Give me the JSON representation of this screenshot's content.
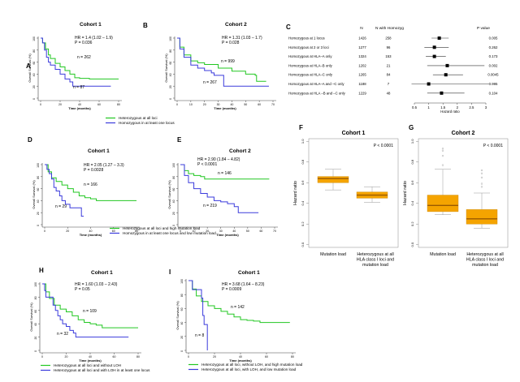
{
  "colors": {
    "green": "#22c722",
    "blue": "#3b3bdc",
    "box_fill": "#f5a400",
    "box_median": "#9a5a00",
    "axis": "#444444",
    "ci_line": "#333333"
  },
  "chart_data": [
    {
      "id": "A",
      "type": "line",
      "panel_label": "A",
      "title": "Cohort 1",
      "xlabel": "Time (months)",
      "ylabel": "Overall Survival (%)",
      "xlim": [
        0,
        80
      ],
      "ylim": [
        0,
        100
      ],
      "xticks": [
        0,
        20,
        40,
        60,
        80
      ],
      "yticks": [
        0,
        20,
        40,
        60,
        80,
        100
      ],
      "annotation": [
        "HR = 1.4 (1.02 – 1.9)",
        "P = 0.036"
      ],
      "series": [
        {
          "name": "Heterozygous at all loci",
          "color": "green",
          "n_label": "n = 262",
          "x": [
            0,
            2,
            5,
            8,
            10,
            15,
            20,
            25,
            30,
            35,
            40,
            50,
            60,
            70,
            80
          ],
          "y": [
            100,
            92,
            82,
            72,
            66,
            58,
            52,
            46,
            40,
            34,
            33,
            32,
            32,
            32,
            32
          ]
        },
        {
          "name": "Homozygous in at least one locus",
          "color": "blue",
          "n_label": "n = 87",
          "x": [
            0,
            2,
            4,
            6,
            8,
            10,
            15,
            20,
            25,
            30,
            33,
            40,
            50,
            60,
            72
          ],
          "y": [
            100,
            92,
            80,
            68,
            60,
            55,
            48,
            40,
            32,
            27,
            20,
            20,
            20,
            20,
            20
          ]
        }
      ],
      "legend": [
        "Heterozygous at all loci",
        "Homozygous in at least one locus"
      ]
    },
    {
      "id": "B",
      "type": "line",
      "panel_label": "B",
      "title": "Cohort 2",
      "xlabel": "Time (months)",
      "ylabel": "Overall Survival (%)",
      "xlim": [
        0,
        70
      ],
      "ylim": [
        0,
        100
      ],
      "xticks": [
        0,
        10,
        20,
        30,
        40,
        50,
        60,
        70
      ],
      "yticks": [
        0,
        20,
        40,
        60,
        80,
        100
      ],
      "annotation": [
        "HR = 1.31 (1.03 – 1.7)",
        "P = 0.028"
      ],
      "series": [
        {
          "name": "Heterozygous at all loci",
          "color": "green",
          "n_label": "n = 999",
          "x": [
            0,
            2,
            5,
            10,
            15,
            20,
            30,
            40,
            50,
            57,
            58,
            65
          ],
          "y": [
            100,
            85,
            72,
            62,
            59,
            56,
            50,
            45,
            40,
            38,
            28,
            28
          ]
        },
        {
          "name": "Homozygous in at least one locus",
          "color": "blue",
          "n_label": "n = 267",
          "x": [
            0,
            2,
            5,
            10,
            15,
            20,
            25,
            27,
            33,
            34,
            67
          ],
          "y": [
            100,
            82,
            68,
            55,
            50,
            46,
            42,
            38,
            38,
            20,
            20
          ]
        }
      ]
    },
    {
      "id": "C",
      "type": "scatter",
      "panel_label": "C",
      "subtype": "forest",
      "columns": [
        "N",
        "N with Homozyg",
        "P value"
      ],
      "xlabel": "Hazard ratio",
      "xlim": [
        0.5,
        3
      ],
      "xticks": [
        0.5,
        1,
        1.5,
        2,
        2.5,
        3
      ],
      "rows": [
        {
          "label": "Homozygous at 1 locus",
          "n": "1426",
          "n_homo": "258",
          "hr": 1.37,
          "lo": 1.1,
          "hi": 1.7,
          "p": "0.005"
        },
        {
          "label": "Homozygous at 2 or 3 loci",
          "n": "1277",
          "n_homo": "96",
          "hr": 1.2,
          "lo": 0.85,
          "hi": 1.7,
          "p": "0.262"
        },
        {
          "label": "Homozygous at HLA–A only",
          "n": "1324",
          "n_homo": "153",
          "hr": 1.2,
          "lo": 0.9,
          "hi": 1.6,
          "p": "0.173"
        },
        {
          "label": "Homozygous at HLA–B only",
          "n": "1202",
          "n_homo": "21",
          "hr": 1.65,
          "lo": 0.95,
          "hi": 2.95,
          "p": "0.002"
        },
        {
          "label": "Homozygous at HLA–C only",
          "n": "1265",
          "n_homo": "84",
          "hr": 1.6,
          "lo": 1.15,
          "hi": 2.2,
          "p": "0.0045"
        },
        {
          "label": "Homozygous at HLA–A and –C only",
          "n": "1188",
          "n_homo": "7",
          "hr": 1.0,
          "lo": 0.4,
          "hi": 3.1,
          "p": "0.995"
        },
        {
          "label": "Homozygous at HLA –B and –C only",
          "n": "1229",
          "n_homo": "48",
          "hr": 1.45,
          "lo": 0.95,
          "hi": 2.25,
          "p": "0.104"
        }
      ]
    },
    {
      "id": "D",
      "type": "line",
      "panel_label": "D",
      "title": "Cohort 1",
      "xlabel": "Time (months)",
      "ylabel": "Overall Survival (%)",
      "xlim": [
        0,
        80
      ],
      "ylim": [
        0,
        100
      ],
      "xticks": [
        0,
        20,
        40,
        60,
        80
      ],
      "yticks": [
        0,
        20,
        40,
        60,
        80,
        100
      ],
      "annotation": [
        "HR = 2.05 (1.27 – 3.3)",
        "P = 0.0028"
      ],
      "series": [
        {
          "name": "Heterozygous at all loci and high mutation load",
          "color": "green",
          "n_label": "n = 166",
          "x": [
            0,
            3,
            6,
            10,
            15,
            20,
            25,
            30,
            35,
            40,
            45,
            50,
            60,
            70,
            80
          ],
          "y": [
            100,
            88,
            78,
            72,
            66,
            60,
            54,
            48,
            45,
            43,
            40,
            40,
            40,
            40,
            40
          ]
        },
        {
          "name": "Homozygous in at least one locus and low mutation load",
          "color": "blue",
          "n_label": "n = 29",
          "x": [
            0,
            2,
            4,
            6,
            8,
            10,
            13,
            15,
            18,
            22,
            30,
            32,
            34
          ],
          "y": [
            100,
            92,
            85,
            76,
            62,
            56,
            48,
            40,
            34,
            28,
            28,
            14,
            14
          ]
        }
      ],
      "legend": [
        "Heterozygous at all loci and high mutation load",
        "Homozygous in at least one locus and low mutation load"
      ]
    },
    {
      "id": "E",
      "type": "line",
      "panel_label": "E",
      "title": "Cohort 2",
      "xlabel": "Time (months)",
      "ylabel": "Overall Survival (%)",
      "xlim": [
        0,
        70
      ],
      "ylim": [
        0,
        100
      ],
      "xticks": [
        0,
        10,
        20,
        30,
        40,
        50,
        60,
        70
      ],
      "yticks": [
        0,
        20,
        40,
        60,
        80,
        100
      ],
      "annotation": [
        "HR = 2.90 (1.84 – 4.82)",
        "P < 0.0001"
      ],
      "series": [
        {
          "name": "Heterozygous at all loci and high mutation load",
          "color": "green",
          "n_label": "n = 146",
          "x": [
            0,
            3,
            6,
            10,
            15,
            18,
            20,
            40,
            60,
            66
          ],
          "y": [
            100,
            90,
            85,
            82,
            80,
            76,
            76,
            76,
            76,
            76
          ]
        },
        {
          "name": "Homozygous in at least one locus and low mutation load",
          "color": "blue",
          "n_label": "n = 219",
          "x": [
            0,
            3,
            6,
            10,
            15,
            20,
            25,
            30,
            35,
            40,
            42,
            43,
            58
          ],
          "y": [
            100,
            82,
            70,
            60,
            52,
            46,
            40,
            38,
            35,
            30,
            30,
            20,
            20
          ]
        }
      ]
    },
    {
      "id": "F",
      "type": "bar",
      "subtype": "boxplot",
      "panel_label": "F",
      "title": "Cohort 1",
      "ylabel": "Hazard ratio",
      "ylim": [
        0,
        1
      ],
      "yticks": [
        0.0,
        0.2,
        0.4,
        0.6,
        0.8,
        1.0
      ],
      "annotation": "P < 0.0001",
      "categories": [
        "Mutation load",
        "Heterozygous at all HLA class I loci and mutation load"
      ],
      "boxes": [
        {
          "min": 0.53,
          "q1": 0.6,
          "median": 0.64,
          "q3": 0.66,
          "max": 0.73,
          "outliers": []
        },
        {
          "min": 0.41,
          "q1": 0.45,
          "median": 0.48,
          "q3": 0.51,
          "max": 0.56,
          "outliers": []
        }
      ]
    },
    {
      "id": "G",
      "type": "bar",
      "subtype": "boxplot",
      "panel_label": "G",
      "title": "Cohort 2",
      "ylabel": "Hazard ratio",
      "ylim": [
        0,
        1
      ],
      "yticks": [
        0.0,
        0.2,
        0.4,
        0.6,
        0.8,
        1.0
      ],
      "annotation": "P < 0.0001",
      "categories": [
        "Mutation load",
        "Heterozygous at all HLA class I loci and mutation load"
      ],
      "boxes": [
        {
          "min": 0.29,
          "q1": 0.32,
          "median": 0.38,
          "q3": 0.48,
          "max": 0.73,
          "outliers": [
            0.77,
            0.86,
            0.91,
            0.93
          ]
        },
        {
          "min": 0.16,
          "q1": 0.2,
          "median": 0.25,
          "q3": 0.34,
          "max": 0.5,
          "outliers": [
            0.56,
            0.59,
            0.65,
            0.69,
            0.72
          ]
        }
      ]
    },
    {
      "id": "H",
      "type": "line",
      "panel_label": "H",
      "title": "Cohort 1",
      "xlabel": "Time (months)",
      "ylabel": "Overall Survival (%)",
      "xlim": [
        0,
        80
      ],
      "ylim": [
        0,
        100
      ],
      "xticks": [
        0,
        20,
        40,
        60,
        80
      ],
      "yticks": [
        0,
        20,
        40,
        60,
        80,
        100
      ],
      "annotation": [
        "HR = 1.60 (1.03 – 2.43)",
        "P = 0.05"
      ],
      "series": [
        {
          "name": "Heterozygous at all loci and without LOH",
          "color": "green",
          "n_label": "n = 109",
          "x": [
            0,
            3,
            6,
            10,
            15,
            20,
            25,
            30,
            35,
            40,
            45,
            50,
            60,
            70,
            80
          ],
          "y": [
            100,
            88,
            78,
            68,
            62,
            58,
            52,
            46,
            42,
            40,
            38,
            34,
            34,
            34,
            34
          ]
        },
        {
          "name": "Heterozygous at all loci and with LOH in at least one locus",
          "color": "blue",
          "n_label": "n = 32",
          "x": [
            0,
            2,
            3,
            7,
            9,
            11,
            13,
            15,
            17,
            20,
            23,
            26,
            28,
            72
          ],
          "y": [
            100,
            90,
            80,
            80,
            68,
            60,
            52,
            46,
            40,
            36,
            30,
            26,
            20,
            20
          ]
        }
      ],
      "legend": [
        "Heterozygous at all loci and without LOH",
        "Heterozygous at all loci and with LOH in at least one locus"
      ]
    },
    {
      "id": "I",
      "type": "line",
      "panel_label": "I",
      "title": "Cohort 1",
      "xlabel": "Time (months)",
      "ylabel": "Overall Survival (%)",
      "xlim": [
        0,
        80
      ],
      "ylim": [
        0,
        100
      ],
      "xticks": [
        0,
        20,
        40,
        60,
        80
      ],
      "yticks": [
        0,
        20,
        40,
        60,
        80,
        100
      ],
      "annotation": [
        "HR = 3.68 (1.64 – 8.23)",
        "P = 0.0009"
      ],
      "series": [
        {
          "name": "Heterozygous at all loci, without LOH, and high mutation load",
          "color": "green",
          "n_label": "n = 142",
          "x": [
            0,
            3,
            6,
            10,
            15,
            20,
            25,
            30,
            35,
            40,
            45,
            50,
            55,
            60,
            70,
            78
          ],
          "y": [
            100,
            88,
            78,
            70,
            64,
            60,
            56,
            52,
            48,
            44,
            43,
            42,
            40,
            40,
            40,
            40
          ]
        },
        {
          "name": "Heterozygous at all loci, with LOH, and low mutation load",
          "color": "blue",
          "n_label": "n = 8",
          "x": [
            0,
            3,
            8,
            10,
            11,
            12,
            13,
            14,
            14.5
          ],
          "y": [
            100,
            87,
            87,
            75,
            50,
            37,
            37,
            37,
            0
          ]
        }
      ],
      "legend": [
        "Heterozygous at all loci, without LOH, and high mutation load",
        "Heterozygous at all loci, with LOH, and low mutation load"
      ]
    }
  ]
}
